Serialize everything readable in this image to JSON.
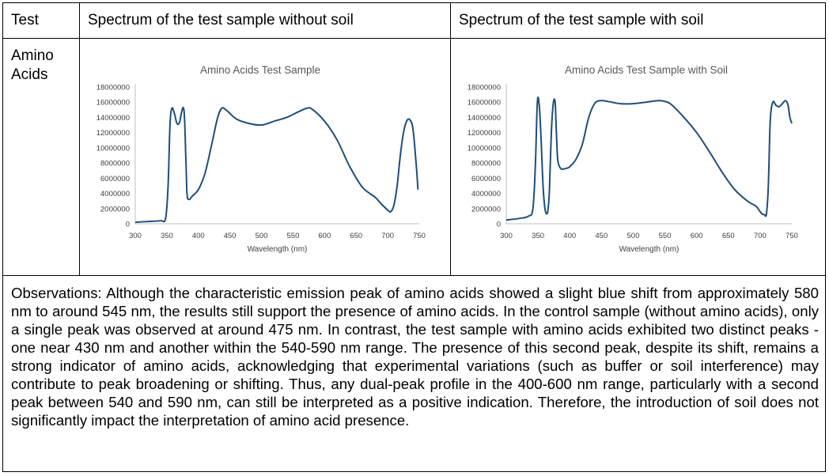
{
  "header": {
    "col1": "Test",
    "col2": "Spectrum of the test sample without soil",
    "col3": "Spectrum of the test sample with soil"
  },
  "row": {
    "label": "Amino Acids"
  },
  "observations": "Observations: Although the characteristic emission peak of amino acids showed a slight blue shift from approximately 580 nm to around 545 nm, the results still support the presence of amino acids. In the control sample (without amino acids), only a single peak was observed at around 475 nm. In contrast, the test sample with amino acids exhibited two distinct peaks - one near 430 nm and another within the 540-590 nm range. The presence of this second peak, despite its shift, remains a strong indicator of amino acids, acknowledging that experimental variations (such as buffer or soil interference) may contribute to peak broadening or shifting. Thus, any dual-peak profile in the 400-600 nm range, particularly with a second peak between 540 and 590 nm, can still be interpreted as a positive indication. Therefore, the introduction of soil does not significantly impact the interpretation of amino acid presence.",
  "colors": {
    "line": "#1f4e79",
    "axis": "#bfbfbf"
  },
  "chart_data": [
    {
      "type": "line",
      "title": "Amino Acids Test Sample",
      "xlabel": "Wavelength (nm)",
      "ylabel": "",
      "xlim": [
        300,
        750
      ],
      "ylim": [
        0,
        18000000
      ],
      "xticks": [
        300,
        350,
        400,
        450,
        500,
        550,
        600,
        650,
        700,
        750
      ],
      "yticks": [
        0,
        2000000,
        4000000,
        6000000,
        8000000,
        10000000,
        12000000,
        14000000,
        16000000,
        18000000
      ],
      "grid": false,
      "series": [
        {
          "x": [
            300,
            320,
            340,
            348,
            352,
            355,
            358,
            362,
            366,
            370,
            373,
            376,
            378,
            380,
            382,
            385,
            390,
            400,
            410,
            420,
            430,
            437,
            445,
            460,
            480,
            500,
            520,
            540,
            560,
            572,
            580,
            600,
            620,
            640,
            660,
            680,
            690,
            700,
            705,
            710,
            715,
            720,
            725,
            730,
            735,
            740,
            745,
            748
          ],
          "y": [
            200000,
            300000,
            400000,
            700000,
            5000000,
            13000000,
            15200000,
            14500000,
            13200000,
            13300000,
            14500000,
            15300000,
            14000000,
            9000000,
            4000000,
            3200000,
            3600000,
            4500000,
            6500000,
            10000000,
            13800000,
            15200000,
            14900000,
            13800000,
            13200000,
            13000000,
            13500000,
            14000000,
            14800000,
            15200000,
            15100000,
            13500000,
            11000000,
            7500000,
            4800000,
            3500000,
            2600000,
            1800000,
            1600000,
            2500000,
            5000000,
            9000000,
            12000000,
            13500000,
            13700000,
            12500000,
            8000000,
            4500000
          ]
        }
      ]
    },
    {
      "type": "line",
      "title": "Amino Acids Test Sample with Soil",
      "xlabel": "Wavelength (nm)",
      "ylabel": "",
      "xlim": [
        300,
        750
      ],
      "ylim": [
        0,
        18000000
      ],
      "xticks": [
        300,
        350,
        400,
        450,
        500,
        550,
        600,
        650,
        700,
        750
      ],
      "yticks": [
        0,
        2000000,
        4000000,
        6000000,
        8000000,
        10000000,
        12000000,
        14000000,
        16000000,
        18000000
      ],
      "grid": false,
      "series": [
        {
          "x": [
            300,
            320,
            335,
            342,
            346,
            349,
            352,
            355,
            358,
            361,
            364,
            366,
            368,
            371,
            374,
            377,
            379,
            381,
            384,
            387,
            390,
            395,
            400,
            410,
            420,
            430,
            440,
            450,
            460,
            480,
            500,
            520,
            540,
            550,
            560,
            580,
            600,
            620,
            640,
            660,
            680,
            690,
            695,
            700,
            703,
            707,
            710,
            713,
            716,
            720,
            725,
            730,
            735,
            740,
            744,
            747,
            750
          ],
          "y": [
            500000,
            700000,
            1000000,
            2000000,
            8000000,
            16000000,
            15600000,
            11000000,
            5000000,
            2000000,
            1300000,
            2000000,
            4500000,
            12000000,
            15800000,
            16000000,
            12000000,
            8500000,
            7500000,
            7200000,
            7200000,
            7300000,
            7500000,
            8500000,
            10500000,
            14000000,
            15900000,
            16200000,
            16100000,
            15800000,
            15800000,
            16000000,
            16200000,
            16100000,
            15700000,
            14000000,
            12000000,
            9500000,
            6800000,
            4500000,
            3000000,
            2500000,
            2200000,
            1600000,
            1300000,
            1200000,
            1300000,
            5000000,
            13500000,
            16000000,
            15600000,
            15400000,
            15800000,
            16200000,
            15600000,
            14000000,
            13200000
          ]
        }
      ]
    }
  ]
}
